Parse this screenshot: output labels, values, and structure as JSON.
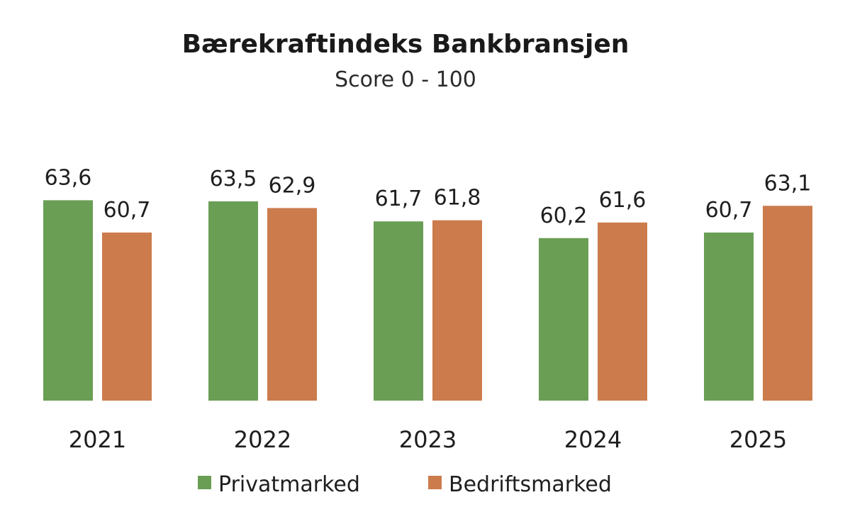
{
  "chart_data": {
    "type": "bar",
    "title": "Bærekraftindeks Bankbransjen",
    "subtitle": "Score 0 - 100",
    "categories": [
      "2021",
      "2022",
      "2023",
      "2024",
      "2025"
    ],
    "series": [
      {
        "name": "Privatmarked",
        "color": "#6a9e55",
        "values": [
          63.6,
          63.5,
          61.7,
          60.2,
          60.7
        ],
        "labels": [
          "63,6",
          "63,5",
          "61,7",
          "60,2",
          "60,7"
        ]
      },
      {
        "name": "Bedriftsmarked",
        "color": "#cc7b4c",
        "values": [
          60.7,
          62.9,
          61.8,
          61.6,
          63.1
        ],
        "labels": [
          "60,7",
          "62,9",
          "61,8",
          "61,6",
          "63,1"
        ]
      }
    ],
    "legend_position": "bottom",
    "grid": false,
    "y_axis_visible": false
  }
}
